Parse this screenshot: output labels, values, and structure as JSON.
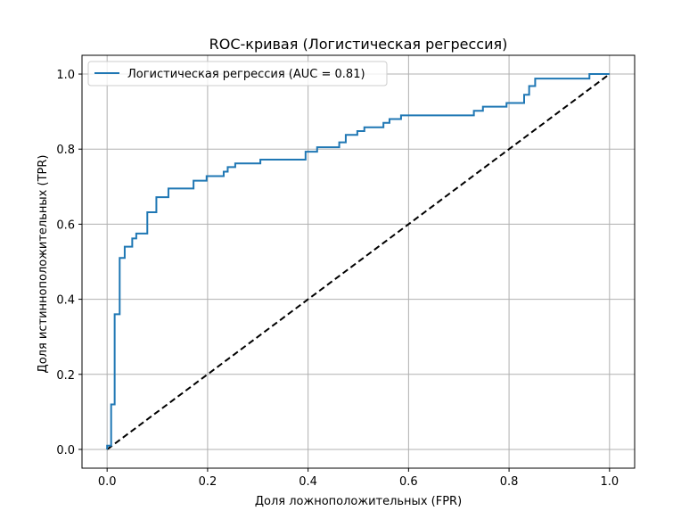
{
  "chart_data": {
    "type": "line",
    "title": "ROC-кривая (Логистическая регрессия)",
    "xlabel": "Доля ложноположительных (FPR)",
    "ylabel": "Доля истинноположительных (TPR)",
    "xlim": [
      -0.05,
      1.05
    ],
    "ylim": [
      -0.05,
      1.05
    ],
    "xticks": [
      0.0,
      0.2,
      0.4,
      0.6,
      0.8,
      1.0
    ],
    "yticks": [
      0.0,
      0.2,
      0.4,
      0.6,
      0.8,
      1.0
    ],
    "xtick_labels": [
      "0.0",
      "0.2",
      "0.4",
      "0.6",
      "0.8",
      "1.0"
    ],
    "ytick_labels": [
      "0.0",
      "0.2",
      "0.4",
      "0.6",
      "0.8",
      "1.0"
    ],
    "grid": true,
    "legend_position": "upper-left",
    "series": [
      {
        "name": "Логистическая регрессия (AUC = 0.81)",
        "color": "#1f77b4",
        "style": "step-solid",
        "x": [
          0.0,
          0.0,
          0.008,
          0.008,
          0.015,
          0.015,
          0.025,
          0.025,
          0.035,
          0.035,
          0.05,
          0.05,
          0.058,
          0.058,
          0.08,
          0.08,
          0.098,
          0.098,
          0.122,
          0.122,
          0.172,
          0.172,
          0.198,
          0.198,
          0.232,
          0.232,
          0.24,
          0.24,
          0.255,
          0.255,
          0.305,
          0.305,
          0.395,
          0.395,
          0.418,
          0.418,
          0.462,
          0.462,
          0.475,
          0.475,
          0.498,
          0.498,
          0.512,
          0.512,
          0.55,
          0.55,
          0.562,
          0.562,
          0.585,
          0.585,
          0.73,
          0.73,
          0.748,
          0.748,
          0.795,
          0.795,
          0.83,
          0.83,
          0.84,
          0.84,
          0.852,
          0.852,
          0.96,
          0.96,
          1.0
        ],
        "y": [
          0.0,
          0.01,
          0.01,
          0.12,
          0.12,
          0.36,
          0.36,
          0.51,
          0.51,
          0.54,
          0.54,
          0.562,
          0.562,
          0.575,
          0.575,
          0.632,
          0.632,
          0.672,
          0.672,
          0.695,
          0.695,
          0.716,
          0.716,
          0.728,
          0.728,
          0.74,
          0.74,
          0.752,
          0.752,
          0.762,
          0.762,
          0.772,
          0.772,
          0.793,
          0.793,
          0.805,
          0.805,
          0.818,
          0.818,
          0.838,
          0.838,
          0.848,
          0.848,
          0.858,
          0.858,
          0.87,
          0.87,
          0.88,
          0.88,
          0.89,
          0.89,
          0.902,
          0.902,
          0.913,
          0.913,
          0.923,
          0.923,
          0.945,
          0.945,
          0.968,
          0.968,
          0.988,
          0.988,
          1.0,
          1.0
        ]
      },
      {
        "name": "",
        "color": "#000000",
        "style": "dashed",
        "x": [
          0.0,
          1.0
        ],
        "y": [
          0.0,
          1.0
        ]
      }
    ]
  }
}
